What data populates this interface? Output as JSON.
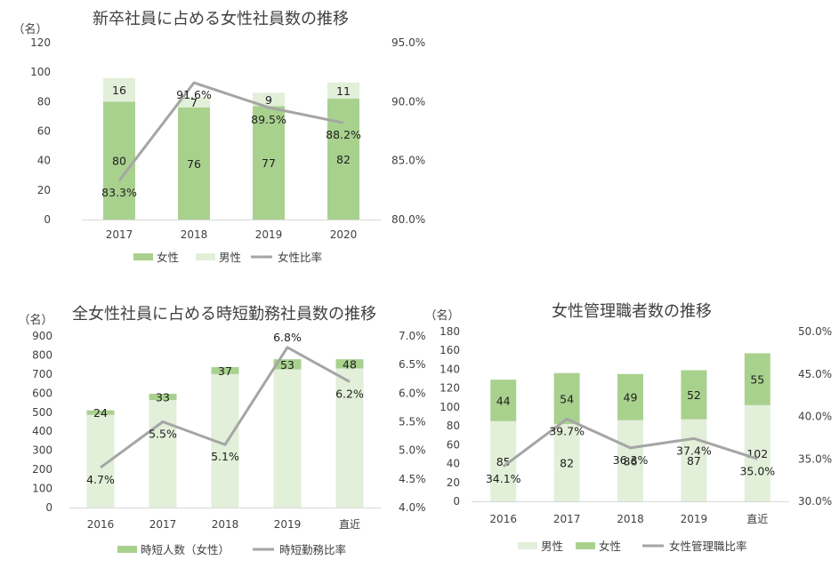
{
  "colors": {
    "green": "#a9d18e",
    "light_green": "#e2efd9",
    "line": "#a5a5a5",
    "text": "#404040"
  },
  "chart_data": [
    {
      "type": "bar",
      "title": "新卒社員に占める女性社員数の推移",
      "y_unit": "（名）",
      "categories": [
        "2017",
        "2018",
        "2019",
        "2020"
      ],
      "stacked": true,
      "series": [
        {
          "name": "女性",
          "values": [
            80,
            76,
            77,
            82
          ],
          "color": "#a9d18e"
        },
        {
          "name": "男性",
          "values": [
            16,
            7,
            9,
            11
          ],
          "color": "#e2efd9"
        }
      ],
      "line_series": {
        "name": "女性比率",
        "values": [
          83.3,
          91.6,
          89.5,
          88.2
        ],
        "labels": [
          "83.3%",
          "91.6%",
          "89.5%",
          "88.2%"
        ]
      },
      "ylim": [
        0,
        120
      ],
      "yticks": [
        "0",
        "20",
        "40",
        "60",
        "80",
        "100",
        "120"
      ],
      "y2lim": [
        80,
        95
      ],
      "y2ticks": [
        "80.0%",
        "85.0%",
        "90.0%",
        "95.0%"
      ],
      "legend": "bottom"
    },
    {
      "type": "bar",
      "title": "全女性社員に占める時短勤務社員数の推移",
      "y_unit": "（名）",
      "categories": [
        "2016",
        "2017",
        "2018",
        "2019",
        "直近"
      ],
      "stacked": true,
      "series": [
        {
          "name": "",
          "values": [
            486,
            564,
            700,
            725,
            730
          ],
          "color": "#e2efd9"
        },
        {
          "name": "時短人数（女性）",
          "values": [
            24,
            33,
            37,
            53,
            48
          ],
          "color": "#a9d18e"
        }
      ],
      "line_series": {
        "name": "時短勤務比率",
        "values": [
          4.7,
          5.5,
          5.1,
          6.8,
          6.2
        ],
        "labels": [
          "4.7%",
          "5.5%",
          "5.1%",
          "6.8%",
          "6.2%"
        ]
      },
      "ylim": [
        0,
        900
      ],
      "yticks": [
        "0",
        "100",
        "200",
        "300",
        "400",
        "500",
        "600",
        "700",
        "800",
        "900"
      ],
      "y2lim": [
        4.0,
        7.0
      ],
      "y2ticks": [
        "4.0%",
        "4.5%",
        "5.0%",
        "5.5%",
        "6.0%",
        "6.5%",
        "7.0%"
      ],
      "legend": "bottom"
    },
    {
      "type": "bar",
      "title": "女性管理職者数の推移",
      "y_unit": "（名）",
      "categories": [
        "2016",
        "2017",
        "2018",
        "2019",
        "直近"
      ],
      "stacked": true,
      "series": [
        {
          "name": "男性",
          "values": [
            85,
            82,
            86,
            87,
            102
          ],
          "color": "#e2efd9"
        },
        {
          "name": "女性",
          "values": [
            44,
            54,
            49,
            52,
            55
          ],
          "color": "#a9d18e"
        }
      ],
      "line_series": {
        "name": "女性管理職比率",
        "values": [
          34.1,
          39.7,
          36.3,
          37.4,
          35.0
        ],
        "labels": [
          "34.1%",
          "39.7%",
          "36.3%",
          "37.4%",
          "35.0%"
        ]
      },
      "ylim": [
        0,
        180
      ],
      "yticks": [
        "0",
        "20",
        "40",
        "60",
        "80",
        "100",
        "120",
        "140",
        "160",
        "180"
      ],
      "y2lim": [
        30,
        50
      ],
      "y2ticks": [
        "30.0%",
        "35.0%",
        "40.0%",
        "45.0%",
        "50.0%"
      ],
      "legend": "bottom"
    }
  ]
}
